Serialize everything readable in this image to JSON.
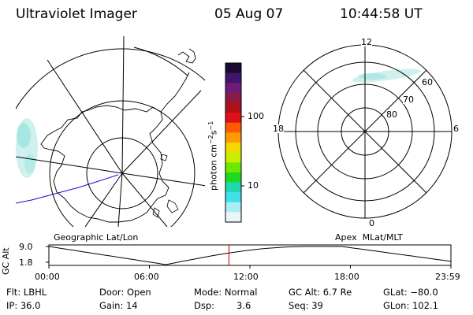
{
  "header": {
    "instrument": "Ultraviolet Imager",
    "date": "05 Aug 07",
    "time": "10:44:58 UT"
  },
  "colorbar": {
    "label": "photon cm-2s-1",
    "ticks": [
      "100",
      "10"
    ],
    "scale": "log",
    "colors": [
      "#1a0b2e",
      "#40156b",
      "#6d1c78",
      "#8b1a45",
      "#b0101a",
      "#e0101a",
      "#ff5a00",
      "#ff9a00",
      "#f0d800",
      "#c8ee00",
      "#6ee800",
      "#20d820",
      "#20d8b0",
      "#40e0e8",
      "#a8eef2",
      "#e8f6f8"
    ]
  },
  "left_panel": {
    "label": "Geographic Lat/Lon"
  },
  "right_panel": {
    "label": "Apex  MLat/MLT",
    "mlt_labels": {
      "top": "12",
      "left": "18",
      "right": "6",
      "bottom": "0"
    },
    "lat_labels": [
      "60",
      "70",
      "80"
    ]
  },
  "altitude_plot": {
    "ylabel": "GC Alt",
    "yticks": [
      "9.0",
      "1.8"
    ],
    "xticks": [
      "00:00",
      "06:00",
      "12:00",
      "18:00",
      "23:59"
    ],
    "current_time_marker_hours": 10.75
  },
  "info": {
    "row1": {
      "filter": "Flt: LBHL",
      "door": "Door: Open",
      "mode": "Mode: Normal",
      "gc_alt": "GC Alt: 6.7 Re",
      "glat": "GLat: −80.0"
    },
    "row2": {
      "ip": "IP: 36.0",
      "gain": "Gain: 14",
      "dsp_label": "Dsp:",
      "dsp_value": "3.6",
      "seq": "Seq: 39",
      "glon": "GLon: 102.1"
    }
  }
}
